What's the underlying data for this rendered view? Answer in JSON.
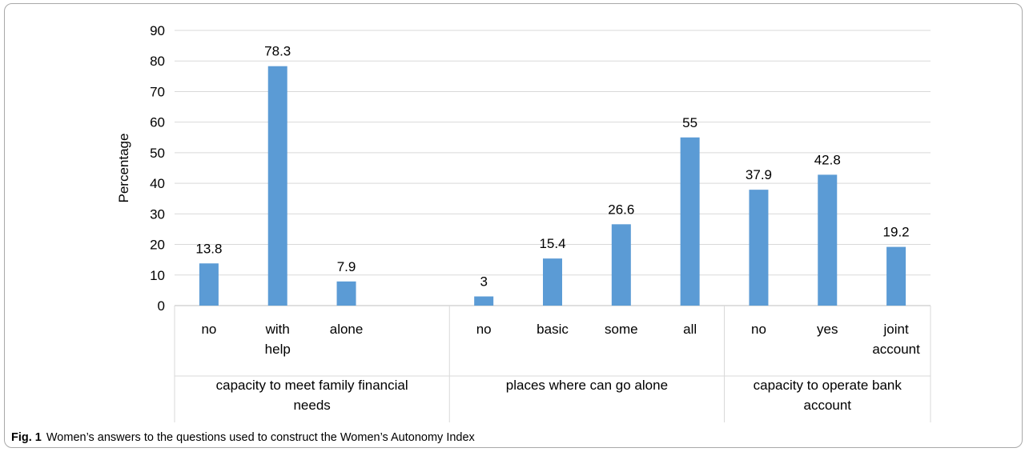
{
  "chart_data": {
    "type": "bar",
    "ylabel": "Percentage",
    "ylim": [
      0,
      90
    ],
    "yticks": [
      0,
      10,
      20,
      30,
      40,
      50,
      60,
      70,
      80,
      90
    ],
    "grid": true,
    "bar_color": "#5b9bd5",
    "groups": [
      {
        "label": [
          "capacity to meet family financial",
          "needs"
        ],
        "categories": [
          [
            "no"
          ],
          [
            "with",
            "help"
          ],
          [
            "alone"
          ]
        ],
        "values": [
          13.8,
          78.3,
          7.9
        ],
        "data_labels": [
          "13.8",
          "78.3",
          "7.9"
        ]
      },
      {
        "label": [
          "places where can go alone"
        ],
        "categories": [
          [
            "no"
          ],
          [
            "basic"
          ],
          [
            "some"
          ],
          [
            "all"
          ]
        ],
        "values": [
          3,
          15.4,
          26.6,
          55
        ],
        "data_labels": [
          "3",
          "15.4",
          "26.6",
          "55"
        ]
      },
      {
        "label": [
          "capacity to operate bank",
          "account"
        ],
        "categories": [
          [
            "no"
          ],
          [
            "yes"
          ],
          [
            "joint",
            "account"
          ]
        ],
        "values": [
          37.9,
          42.8,
          19.2
        ],
        "data_labels": [
          "37.9",
          "42.8",
          "19.2"
        ]
      }
    ]
  },
  "caption": {
    "label": "Fig. 1",
    "text": "Women’s answers to the questions used to construct the Women’s Autonomy Index"
  }
}
